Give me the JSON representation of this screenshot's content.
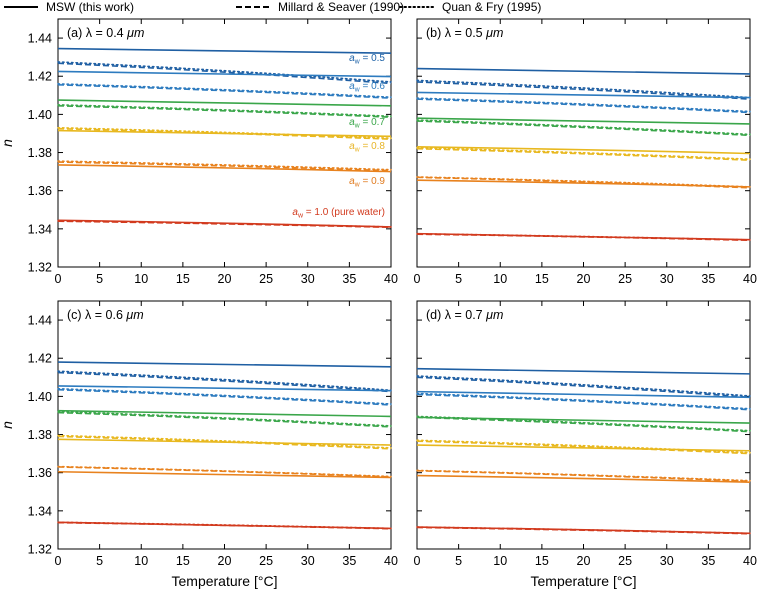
{
  "legend": [
    {
      "label": "MSW (this work)",
      "dash": "solid"
    },
    {
      "label": "Millard & Seaver (1990)",
      "dash": "dashed"
    },
    {
      "label": "Quan & Fry (1995)",
      "dash": "dotted"
    }
  ],
  "xlabel": "Temperature [°C]",
  "ylabel": "n",
  "xticks": [
    "0",
    "5",
    "10",
    "15",
    "20",
    "25",
    "30",
    "35",
    "40"
  ],
  "yticks": [
    "1.32",
    "1.34",
    "1.36",
    "1.38",
    "1.40",
    "1.42",
    "1.44"
  ],
  "aw_labels": [
    {
      "sub_value": "= 0.5",
      "color": "#1f63a8"
    },
    {
      "sub_value": "= 0.6",
      "color": "#2f7cbf"
    },
    {
      "sub_value": "= 0.7",
      "color": "#3aa64a"
    },
    {
      "sub_value": "= 0.8",
      "color": "#e8b528"
    },
    {
      "sub_value": "= 0.9",
      "color": "#e07b20"
    },
    {
      "sub_value": "= 1.0 (pure water)",
      "color": "#d23a1e"
    }
  ],
  "aw_symbol": "a",
  "aw_subscript": "w",
  "colors": {
    "aw_0.5": "#1f5fa3",
    "aw_0.6": "#2d7bbf",
    "aw_0.7": "#3aa64a",
    "aw_0.8": "#e8b81f",
    "aw_0.9": "#e8821e",
    "aw_1.0": "#d23a1e"
  },
  "chart_data": [
    {
      "type": "line",
      "panel_label": "(a)  λ = 0.4 ",
      "unit": "μm",
      "x": [
        0,
        40
      ],
      "xlim": [
        0,
        40
      ],
      "ylim": [
        1.32,
        1.45
      ],
      "series": [
        {
          "aw": 0.5,
          "source": "MSW",
          "y": [
            1.4345,
            1.4321
          ]
        },
        {
          "aw": 0.5,
          "source": "Millard & Seaver",
          "y": [
            1.4268,
            1.4162
          ]
        },
        {
          "aw": 0.5,
          "source": "Quan & Fry",
          "y": [
            1.4275,
            1.417
          ]
        },
        {
          "aw": 0.6,
          "source": "MSW",
          "y": [
            1.4225,
            1.4198
          ]
        },
        {
          "aw": 0.6,
          "source": "Millard & Seaver",
          "y": [
            1.4155,
            1.4085
          ]
        },
        {
          "aw": 0.6,
          "source": "Quan & Fry",
          "y": [
            1.416,
            1.409
          ]
        },
        {
          "aw": 0.7,
          "source": "MSW",
          "y": [
            1.4075,
            1.4045
          ]
        },
        {
          "aw": 0.7,
          "source": "Millard & Seaver",
          "y": [
            1.4045,
            1.3985
          ]
        },
        {
          "aw": 0.7,
          "source": "Quan & Fry",
          "y": [
            1.405,
            1.399
          ]
        },
        {
          "aw": 0.8,
          "source": "MSW",
          "y": [
            1.3915,
            1.3885
          ]
        },
        {
          "aw": 0.8,
          "source": "Millard & Seaver",
          "y": [
            1.3925,
            1.387
          ]
        },
        {
          "aw": 0.8,
          "source": "Quan & Fry",
          "y": [
            1.393,
            1.3875
          ]
        },
        {
          "aw": 0.9,
          "source": "MSW",
          "y": [
            1.3735,
            1.37
          ]
        },
        {
          "aw": 0.9,
          "source": "Millard & Seaver",
          "y": [
            1.375,
            1.3705
          ]
        },
        {
          "aw": 0.9,
          "source": "Quan & Fry",
          "y": [
            1.3755,
            1.371
          ]
        },
        {
          "aw": 1.0,
          "source": "MSW",
          "y": [
            1.3445,
            1.341
          ]
        },
        {
          "aw": 1.0,
          "source": "Millard & Seaver",
          "y": [
            1.344,
            1.3408
          ]
        },
        {
          "aw": 1.0,
          "source": "Quan & Fry",
          "y": [
            1.3442,
            1.341
          ]
        }
      ]
    },
    {
      "type": "line",
      "panel_label": "(b)  λ = 0.5 ",
      "unit": "μm",
      "x": [
        0,
        40
      ],
      "xlim": [
        0,
        40
      ],
      "ylim": [
        1.32,
        1.45
      ],
      "series": [
        {
          "aw": 0.5,
          "source": "MSW",
          "y": [
            1.424,
            1.4212
          ]
        },
        {
          "aw": 0.5,
          "source": "Millard & Seaver",
          "y": [
            1.417,
            1.408
          ]
        },
        {
          "aw": 0.5,
          "source": "Quan & Fry",
          "y": [
            1.4178,
            1.4088
          ]
        },
        {
          "aw": 0.6,
          "source": "MSW",
          "y": [
            1.4115,
            1.4088
          ]
        },
        {
          "aw": 0.6,
          "source": "Millard & Seaver",
          "y": [
            1.408,
            1.401
          ]
        },
        {
          "aw": 0.6,
          "source": "Quan & Fry",
          "y": [
            1.4085,
            1.4015
          ]
        },
        {
          "aw": 0.7,
          "source": "MSW",
          "y": [
            1.398,
            1.395
          ]
        },
        {
          "aw": 0.7,
          "source": "Millard & Seaver",
          "y": [
            1.3965,
            1.389
          ]
        },
        {
          "aw": 0.7,
          "source": "Quan & Fry",
          "y": [
            1.397,
            1.3895
          ]
        },
        {
          "aw": 0.8,
          "source": "MSW",
          "y": [
            1.383,
            1.3795
          ]
        },
        {
          "aw": 0.8,
          "source": "Millard & Seaver",
          "y": [
            1.382,
            1.376
          ]
        },
        {
          "aw": 0.8,
          "source": "Quan & Fry",
          "y": [
            1.3825,
            1.3765
          ]
        },
        {
          "aw": 0.9,
          "source": "MSW",
          "y": [
            1.3655,
            1.362
          ]
        },
        {
          "aw": 0.9,
          "source": "Millard & Seaver",
          "y": [
            1.367,
            1.3615
          ]
        },
        {
          "aw": 0.9,
          "source": "Quan & Fry",
          "y": [
            1.3672,
            1.362
          ]
        },
        {
          "aw": 1.0,
          "source": "MSW",
          "y": [
            1.3375,
            1.3343
          ]
        },
        {
          "aw": 1.0,
          "source": "Millard & Seaver",
          "y": [
            1.3372,
            1.334
          ]
        },
        {
          "aw": 1.0,
          "source": "Quan & Fry",
          "y": [
            1.3374,
            1.3342
          ]
        }
      ]
    },
    {
      "type": "line",
      "panel_label": "(c)  λ = 0.6 ",
      "unit": "μm",
      "x": [
        0,
        40
      ],
      "xlim": [
        0,
        40
      ],
      "ylim": [
        1.32,
        1.45
      ],
      "series": [
        {
          "aw": 0.5,
          "source": "MSW",
          "y": [
            1.418,
            1.4155
          ]
        },
        {
          "aw": 0.5,
          "source": "Millard & Seaver",
          "y": [
            1.4125,
            1.4025
          ]
        },
        {
          "aw": 0.5,
          "source": "Quan & Fry",
          "y": [
            1.4132,
            1.4032
          ]
        },
        {
          "aw": 0.6,
          "source": "MSW",
          "y": [
            1.4055,
            1.403
          ]
        },
        {
          "aw": 0.6,
          "source": "Millard & Seaver",
          "y": [
            1.4035,
            1.3955
          ]
        },
        {
          "aw": 0.6,
          "source": "Quan & Fry",
          "y": [
            1.404,
            1.396
          ]
        },
        {
          "aw": 0.7,
          "source": "MSW",
          "y": [
            1.3925,
            1.3895
          ]
        },
        {
          "aw": 0.7,
          "source": "Millard & Seaver",
          "y": [
            1.3915,
            1.384
          ]
        },
        {
          "aw": 0.7,
          "source": "Quan & Fry",
          "y": [
            1.392,
            1.3845
          ]
        },
        {
          "aw": 0.8,
          "source": "MSW",
          "y": [
            1.3775,
            1.3745
          ]
        },
        {
          "aw": 0.8,
          "source": "Millard & Seaver",
          "y": [
            1.379,
            1.3725
          ]
        },
        {
          "aw": 0.8,
          "source": "Quan & Fry",
          "y": [
            1.3795,
            1.373
          ]
        },
        {
          "aw": 0.9,
          "source": "MSW",
          "y": [
            1.3605,
            1.3575
          ]
        },
        {
          "aw": 0.9,
          "source": "Millard & Seaver",
          "y": [
            1.363,
            1.3578
          ]
        },
        {
          "aw": 0.9,
          "source": "Quan & Fry",
          "y": [
            1.3632,
            1.358
          ]
        },
        {
          "aw": 1.0,
          "source": "MSW",
          "y": [
            1.334,
            1.3308
          ]
        },
        {
          "aw": 1.0,
          "source": "Millard & Seaver",
          "y": [
            1.3338,
            1.3306
          ]
        },
        {
          "aw": 1.0,
          "source": "Quan & Fry",
          "y": [
            1.334,
            1.3308
          ]
        }
      ]
    },
    {
      "type": "line",
      "panel_label": "(d)  λ = 0.7 ",
      "unit": "μm",
      "x": [
        0,
        40
      ],
      "xlim": [
        0,
        40
      ],
      "ylim": [
        1.32,
        1.45
      ],
      "series": [
        {
          "aw": 0.5,
          "source": "MSW",
          "y": [
            1.4145,
            1.4118
          ]
        },
        {
          "aw": 0.5,
          "source": "Millard & Seaver",
          "y": [
            1.41,
            1.3995
          ]
        },
        {
          "aw": 0.5,
          "source": "Quan & Fry",
          "y": [
            1.4107,
            1.4002
          ]
        },
        {
          "aw": 0.6,
          "source": "MSW",
          "y": [
            1.4025,
            1.3995
          ]
        },
        {
          "aw": 0.6,
          "source": "Millard & Seaver",
          "y": [
            1.401,
            1.393
          ]
        },
        {
          "aw": 0.6,
          "source": "Quan & Fry",
          "y": [
            1.4015,
            1.3935
          ]
        },
        {
          "aw": 0.7,
          "source": "MSW",
          "y": [
            1.389,
            1.386
          ]
        },
        {
          "aw": 0.7,
          "source": "Millard & Seaver",
          "y": [
            1.389,
            1.3815
          ]
        },
        {
          "aw": 0.7,
          "source": "Quan & Fry",
          "y": [
            1.3895,
            1.382
          ]
        },
        {
          "aw": 0.8,
          "source": "MSW",
          "y": [
            1.3745,
            1.3715
          ]
        },
        {
          "aw": 0.8,
          "source": "Millard & Seaver",
          "y": [
            1.3765,
            1.37
          ]
        },
        {
          "aw": 0.8,
          "source": "Quan & Fry",
          "y": [
            1.377,
            1.3705
          ]
        },
        {
          "aw": 0.9,
          "source": "MSW",
          "y": [
            1.3585,
            1.355
          ]
        },
        {
          "aw": 0.9,
          "source": "Millard & Seaver",
          "y": [
            1.361,
            1.3555
          ]
        },
        {
          "aw": 0.9,
          "source": "Quan & Fry",
          "y": [
            1.3612,
            1.3558
          ]
        },
        {
          "aw": 1.0,
          "source": "MSW",
          "y": [
            1.3315,
            1.3282
          ]
        },
        {
          "aw": 1.0,
          "source": "Millard & Seaver",
          "y": [
            1.3313,
            1.328
          ]
        },
        {
          "aw": 1.0,
          "source": "Quan & Fry",
          "y": [
            1.3315,
            1.3282
          ]
        }
      ]
    }
  ]
}
